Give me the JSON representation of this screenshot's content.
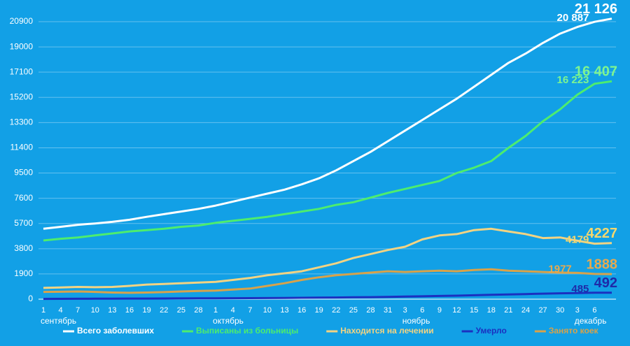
{
  "chart_data": {
    "type": "line",
    "categories": [
      "1",
      "4",
      "7",
      "10",
      "13",
      "16",
      "19",
      "22",
      "25",
      "28",
      "1",
      "4",
      "7",
      "10",
      "13",
      "16",
      "19",
      "22",
      "25",
      "28",
      "31",
      "3",
      "6",
      "9",
      "12",
      "15",
      "18",
      "21",
      "24",
      "27",
      "30",
      "3",
      "6",
      null
    ],
    "month_labels": [
      {
        "label": "сентябрь",
        "index": 0
      },
      {
        "label": "октябрь",
        "index": 10
      },
      {
        "label": "ноябрь",
        "index": 21
      },
      {
        "label": "декабрь",
        "index": 31
      }
    ],
    "ylim": [
      0,
      20900
    ],
    "yticks": [
      0,
      1900,
      3800,
      5700,
      7600,
      9500,
      11400,
      13300,
      15200,
      17100,
      19000,
      20900
    ],
    "grid": true,
    "legend": "bottom",
    "series": [
      {
        "name": "Всего заболевших",
        "color": "#ffffff",
        "label_color": "#ffffff",
        "values": [
          5300,
          5450,
          5600,
          5700,
          5820,
          5980,
          6200,
          6400,
          6600,
          6800,
          7050,
          7350,
          7650,
          7950,
          8250,
          8650,
          9100,
          9700,
          10400,
          11100,
          11900,
          12700,
          13500,
          14300,
          15100,
          16000,
          16900,
          17800,
          18500,
          19300,
          20000,
          20500,
          20887,
          21126
        ],
        "value_labels": [
          null,
          null,
          null,
          null,
          null,
          null,
          null,
          null,
          null,
          null,
          null,
          null,
          null,
          null,
          null,
          null,
          null,
          null,
          null,
          null,
          null,
          null,
          null,
          null,
          null,
          null,
          null,
          null,
          null,
          null,
          null,
          null,
          "20 887",
          "21 126"
        ]
      },
      {
        "name": "Выписаны из больницы",
        "color": "#4ded6e",
        "label_color": "#7df590",
        "values": [
          4420,
          4550,
          4650,
          4800,
          4950,
          5100,
          5200,
          5300,
          5450,
          5550,
          5750,
          5900,
          6050,
          6200,
          6400,
          6600,
          6800,
          7100,
          7300,
          7650,
          8000,
          8300,
          8600,
          8900,
          9500,
          9900,
          10400,
          11400,
          12300,
          13400,
          14300,
          15400,
          16223,
          16407
        ],
        "value_labels": [
          null,
          null,
          null,
          null,
          null,
          null,
          null,
          null,
          null,
          null,
          null,
          null,
          null,
          null,
          null,
          null,
          null,
          null,
          null,
          null,
          null,
          null,
          null,
          null,
          null,
          null,
          null,
          null,
          null,
          null,
          null,
          null,
          "16 223",
          "16 407"
        ]
      },
      {
        "name": "Находится на лечении",
        "color": "#f2d383",
        "label_color": "#f5d76e",
        "values": [
          850,
          880,
          920,
          900,
          920,
          1000,
          1100,
          1150,
          1200,
          1250,
          1300,
          1450,
          1600,
          1800,
          1950,
          2100,
          2400,
          2700,
          3100,
          3400,
          3700,
          3950,
          4500,
          4800,
          4900,
          5200,
          5300,
          5100,
          4900,
          4600,
          4650,
          4400,
          4179,
          4227
        ],
        "value_labels": [
          null,
          null,
          null,
          null,
          null,
          null,
          null,
          null,
          null,
          null,
          null,
          null,
          null,
          null,
          null,
          null,
          null,
          null,
          null,
          null,
          null,
          null,
          null,
          null,
          null,
          null,
          null,
          null,
          null,
          null,
          null,
          null,
          "4179",
          "4227"
        ]
      },
      {
        "name": "Умерло",
        "color": "#1b30c0",
        "label_color": "#1f2aa8",
        "values": [
          20,
          25,
          30,
          35,
          40,
          45,
          50,
          55,
          60,
          65,
          70,
          75,
          80,
          85,
          95,
          105,
          115,
          125,
          140,
          155,
          175,
          195,
          215,
          240,
          265,
          295,
          325,
          355,
          385,
          415,
          440,
          465,
          485,
          492
        ],
        "value_labels": [
          null,
          null,
          null,
          null,
          null,
          null,
          null,
          null,
          null,
          null,
          null,
          null,
          null,
          null,
          null,
          null,
          null,
          null,
          null,
          null,
          null,
          null,
          null,
          null,
          null,
          null,
          null,
          null,
          null,
          null,
          null,
          null,
          "485",
          "492"
        ]
      },
      {
        "name": "Занято коек",
        "color": "#d8a24a",
        "label_color": "#e6aa50",
        "values": [
          550,
          560,
          580,
          550,
          500,
          480,
          500,
          530,
          580,
          620,
          650,
          720,
          800,
          1000,
          1200,
          1450,
          1650,
          1800,
          1900,
          2000,
          2100,
          2050,
          2100,
          2150,
          2100,
          2200,
          2250,
          2150,
          2100,
          2050,
          2000,
          1977,
          1900,
          1888
        ],
        "value_labels": [
          null,
          null,
          null,
          null,
          null,
          null,
          null,
          null,
          null,
          null,
          null,
          null,
          null,
          null,
          null,
          null,
          null,
          null,
          null,
          null,
          null,
          null,
          null,
          null,
          null,
          null,
          null,
          null,
          null,
          null,
          null,
          "1977",
          null,
          "1888"
        ]
      }
    ]
  }
}
